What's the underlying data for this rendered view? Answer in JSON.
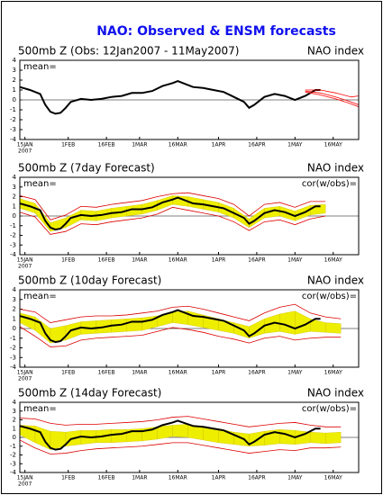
{
  "title": "NAO: Observed & ENSM forecasts",
  "chart_data": [
    {
      "type": "line",
      "title": "500mb Z (Obs: 12Jan2007 - 11May2007)",
      "index_label": "NAO index",
      "mean_label": "mean=",
      "xlim": [
        -2,
        131
      ],
      "ylim": [
        -4,
        4
      ],
      "yticks": [
        -4,
        -3,
        -2,
        -1,
        0,
        1,
        2,
        3,
        4
      ],
      "xticks": [
        {
          "value": 0,
          "label": "15JAN"
        },
        {
          "value": 17,
          "label": "1FEB"
        },
        {
          "value": 32,
          "label": "16FEB"
        },
        {
          "value": 45,
          "label": "1MAR"
        },
        {
          "value": 60,
          "label": "16MAR"
        },
        {
          "value": 76,
          "label": "1APR"
        },
        {
          "value": 91,
          "label": "16APR"
        },
        {
          "value": 106,
          "label": "1MAY"
        },
        {
          "value": 121,
          "label": "16MAY"
        }
      ],
      "year_label": "2007",
      "series": [
        {
          "kind": "line",
          "color": "#000000",
          "x": [
            -2,
            2,
            6,
            8,
            10,
            12,
            14,
            16,
            18,
            22,
            26,
            30,
            34,
            38,
            42,
            46,
            50,
            54,
            58,
            60,
            62,
            66,
            70,
            74,
            78,
            82,
            86,
            88,
            90,
            94,
            98,
            102,
            106,
            110,
            114,
            116
          ],
          "values": [
            1.3,
            1.0,
            0.6,
            -0.5,
            -1.2,
            -1.4,
            -1.3,
            -0.8,
            -0.2,
            0.1,
            0.0,
            0.1,
            0.3,
            0.4,
            0.7,
            0.7,
            0.9,
            1.4,
            1.7,
            1.9,
            1.7,
            1.3,
            1.2,
            1.0,
            0.8,
            0.3,
            -0.2,
            -0.8,
            -0.5,
            0.3,
            0.6,
            0.4,
            0.0,
            0.4,
            1.0,
            1.0
          ]
        },
        {
          "kind": "line",
          "color": "#ff0000",
          "x": [
            110,
            116,
            122,
            128,
            131
          ],
          "values": [
            0.9,
            0.7,
            0.3,
            -0.2,
            -0.5
          ]
        },
        {
          "kind": "line",
          "color": "#ff0000",
          "x": [
            110,
            116,
            122,
            128,
            131
          ],
          "values": [
            1.0,
            1.0,
            0.7,
            0.3,
            0.4
          ]
        },
        {
          "kind": "line",
          "color": "#ff0000",
          "x": [
            110,
            116,
            122,
            128,
            131
          ],
          "values": [
            0.8,
            0.5,
            0.1,
            -0.4,
            -0.7
          ]
        }
      ]
    },
    {
      "type": "line",
      "title": "500mb Z (7day Forecast)",
      "index_label": "NAO index",
      "mean_label": "mean=",
      "cor_label": "cor(w/obs)=",
      "xlim": [
        -2,
        131
      ],
      "ylim": [
        -4,
        4
      ],
      "yticks": [
        -4,
        -3,
        -2,
        -1,
        0,
        1,
        2,
        3,
        4
      ],
      "xticks": [
        {
          "value": 0,
          "label": "15JAN"
        },
        {
          "value": 17,
          "label": "1FEB"
        },
        {
          "value": 32,
          "label": "16FEB"
        },
        {
          "value": 45,
          "label": "1MAR"
        },
        {
          "value": 60,
          "label": "16MAR"
        },
        {
          "value": 76,
          "label": "1APR"
        },
        {
          "value": 91,
          "label": "16APR"
        },
        {
          "value": 106,
          "label": "1MAY"
        },
        {
          "value": 121,
          "label": "16MAY"
        }
      ],
      "year_label": "2007",
      "series": [
        {
          "kind": "band",
          "color": "#eeee00",
          "x": [
            -2,
            4,
            10,
            16,
            22,
            28,
            34,
            40,
            46,
            52,
            58,
            64,
            70,
            76,
            82,
            88,
            94,
            100,
            106,
            112,
            118
          ],
          "low": [
            0.8,
            0.3,
            -1.6,
            -1.2,
            -0.4,
            -0.5,
            -0.2,
            0.0,
            0.2,
            0.6,
            1.2,
            1.0,
            0.7,
            0.4,
            -0.2,
            -1.2,
            -0.2,
            0.0,
            -0.5,
            0.1,
            0.3
          ],
          "high": [
            1.8,
            1.3,
            -0.7,
            -0.2,
            0.6,
            0.5,
            0.8,
            1.0,
            1.2,
            1.6,
            2.1,
            2.0,
            1.7,
            1.4,
            0.8,
            -0.3,
            0.8,
            1.0,
            0.5,
            1.1,
            1.2
          ]
        },
        {
          "kind": "line",
          "color": "#dd0000",
          "x": [
            -2,
            4,
            10,
            16,
            22,
            28,
            34,
            40,
            46,
            52,
            58,
            64,
            70,
            76,
            82,
            88,
            94,
            100,
            106,
            112,
            118
          ],
          "values": [
            0.4,
            -0.1,
            -1.9,
            -1.6,
            -0.8,
            -0.9,
            -0.6,
            -0.4,
            -0.2,
            0.2,
            0.9,
            0.6,
            0.3,
            0.0,
            -0.6,
            -1.5,
            -0.6,
            -0.4,
            -0.9,
            -0.3,
            0.0
          ]
        },
        {
          "kind": "line",
          "color": "#dd0000",
          "x": [
            -2,
            4,
            10,
            16,
            22,
            28,
            34,
            40,
            46,
            52,
            58,
            64,
            70,
            76,
            82,
            88,
            94,
            100,
            106,
            112,
            118
          ],
          "values": [
            2.1,
            1.7,
            -0.4,
            0.1,
            1.0,
            0.9,
            1.2,
            1.4,
            1.6,
            2.0,
            2.3,
            2.4,
            2.1,
            1.8,
            1.2,
            0.0,
            1.2,
            1.4,
            0.9,
            1.5,
            1.5
          ]
        },
        {
          "kind": "line",
          "color": "#000000",
          "x": [
            -2,
            2,
            6,
            8,
            10,
            12,
            14,
            16,
            18,
            22,
            26,
            30,
            34,
            38,
            42,
            46,
            50,
            54,
            58,
            60,
            62,
            66,
            70,
            74,
            78,
            82,
            86,
            88,
            90,
            94,
            98,
            102,
            106,
            110,
            114,
            116
          ],
          "values": [
            1.3,
            1.0,
            0.6,
            -0.5,
            -1.2,
            -1.4,
            -1.3,
            -0.8,
            -0.2,
            0.1,
            0.0,
            0.1,
            0.3,
            0.4,
            0.7,
            0.7,
            0.9,
            1.4,
            1.7,
            1.9,
            1.7,
            1.3,
            1.2,
            1.0,
            0.8,
            0.3,
            -0.2,
            -0.8,
            -0.5,
            0.3,
            0.6,
            0.4,
            0.0,
            0.4,
            1.0,
            1.0
          ]
        }
      ]
    },
    {
      "type": "line",
      "title": "500mb Z (10day Forecast)",
      "index_label": "NAO index",
      "mean_label": "mean=",
      "cor_label": "cor(w/obs)=",
      "xlim": [
        -2,
        131
      ],
      "ylim": [
        -4,
        4
      ],
      "yticks": [
        -4,
        -3,
        -2,
        -1,
        0,
        1,
        2,
        3,
        4
      ],
      "xticks": [
        {
          "value": 0,
          "label": "15JAN"
        },
        {
          "value": 17,
          "label": "1FEB"
        },
        {
          "value": 32,
          "label": "16FEB"
        },
        {
          "value": 45,
          "label": "1MAR"
        },
        {
          "value": 60,
          "label": "16MAR"
        },
        {
          "value": 76,
          "label": "1APR"
        },
        {
          "value": 91,
          "label": "16APR"
        },
        {
          "value": 106,
          "label": "1MAY"
        },
        {
          "value": 121,
          "label": "16MAY"
        }
      ],
      "year_label": "2007",
      "series": [
        {
          "kind": "band",
          "color": "#eeee00",
          "x": [
            -2,
            4,
            10,
            16,
            22,
            28,
            34,
            40,
            46,
            52,
            58,
            64,
            70,
            76,
            82,
            88,
            94,
            100,
            106,
            112,
            118,
            124
          ],
          "low": [
            0.6,
            -0.2,
            -1.5,
            -1.2,
            -0.6,
            -0.5,
            -0.4,
            -0.3,
            -0.2,
            0.2,
            0.6,
            0.4,
            0.1,
            -0.2,
            -0.5,
            -1.0,
            -0.5,
            -0.3,
            -0.6,
            -0.3,
            -0.4,
            -0.5
          ],
          "high": [
            1.6,
            1.2,
            0.0,
            0.3,
            0.7,
            0.8,
            0.9,
            1.0,
            1.1,
            1.3,
            1.7,
            1.8,
            1.4,
            1.0,
            0.6,
            0.2,
            1.0,
            1.5,
            1.8,
            1.0,
            0.6,
            0.5
          ]
        },
        {
          "kind": "line",
          "color": "#dd0000",
          "x": [
            -2,
            4,
            10,
            16,
            22,
            28,
            34,
            40,
            46,
            52,
            58,
            64,
            70,
            76,
            82,
            88,
            94,
            100,
            106,
            112,
            118,
            124
          ],
          "values": [
            0.2,
            -0.8,
            -1.9,
            -1.8,
            -1.2,
            -1.0,
            -0.9,
            -0.8,
            -0.7,
            -0.3,
            0.1,
            -0.1,
            -0.4,
            -0.8,
            -1.1,
            -1.5,
            -1.0,
            -0.8,
            -1.2,
            -1.0,
            -0.9,
            -0.9
          ]
        },
        {
          "kind": "line",
          "color": "#dd0000",
          "x": [
            -2,
            4,
            10,
            16,
            22,
            28,
            34,
            40,
            46,
            52,
            58,
            64,
            70,
            76,
            82,
            88,
            94,
            100,
            106,
            112,
            118,
            124
          ],
          "values": [
            2.0,
            1.7,
            0.6,
            0.9,
            1.2,
            1.3,
            1.3,
            1.4,
            1.6,
            1.8,
            2.2,
            2.3,
            2.0,
            1.6,
            1.2,
            0.8,
            1.6,
            2.2,
            2.5,
            1.6,
            1.2,
            1.0
          ]
        },
        {
          "kind": "line",
          "color": "#000000",
          "x": [
            -2,
            2,
            6,
            8,
            10,
            12,
            14,
            16,
            18,
            22,
            26,
            30,
            34,
            38,
            42,
            46,
            50,
            54,
            58,
            60,
            62,
            66,
            70,
            74,
            78,
            82,
            86,
            88,
            90,
            94,
            98,
            102,
            106,
            110,
            114,
            116
          ],
          "values": [
            1.3,
            1.0,
            0.6,
            -0.5,
            -1.2,
            -1.4,
            -1.3,
            -0.8,
            -0.2,
            0.1,
            0.0,
            0.1,
            0.3,
            0.4,
            0.7,
            0.7,
            0.9,
            1.4,
            1.7,
            1.9,
            1.7,
            1.3,
            1.2,
            1.0,
            0.8,
            0.3,
            -0.2,
            -0.8,
            -0.5,
            0.3,
            0.6,
            0.4,
            0.0,
            0.4,
            1.0,
            1.0
          ]
        }
      ]
    },
    {
      "type": "line",
      "title": "500mb Z (14day Forecast)",
      "index_label": "NAO index",
      "mean_label": "mean=",
      "cor_label": "cor(w/obs)=",
      "xlim": [
        -2,
        131
      ],
      "ylim": [
        -4,
        4
      ],
      "yticks": [
        -4,
        -3,
        -2,
        -1,
        0,
        1,
        2,
        3,
        4
      ],
      "xticks": [
        {
          "value": 0,
          "label": "15JAN"
        },
        {
          "value": 17,
          "label": "1FEB"
        },
        {
          "value": 32,
          "label": "16FEB"
        },
        {
          "value": 45,
          "label": "1MAR"
        },
        {
          "value": 60,
          "label": "16MAR"
        },
        {
          "value": 76,
          "label": "1APR"
        },
        {
          "value": 91,
          "label": "16APR"
        },
        {
          "value": 106,
          "label": "1MAY"
        },
        {
          "value": 121,
          "label": "16MAY"
        }
      ],
      "year_label": "2007",
      "series": [
        {
          "kind": "band",
          "color": "#eeee00",
          "x": [
            -2,
            4,
            10,
            16,
            22,
            28,
            34,
            40,
            46,
            52,
            58,
            64,
            70,
            76,
            82,
            88,
            94,
            100,
            106,
            112,
            118,
            124
          ],
          "low": [
            0.3,
            -0.6,
            -1.4,
            -1.0,
            -0.8,
            -0.6,
            -0.6,
            -0.5,
            -0.4,
            -0.2,
            0.1,
            0.0,
            -0.3,
            -0.6,
            -0.8,
            -1.0,
            -0.9,
            -0.7,
            -0.8,
            -0.6,
            -0.7,
            -0.6
          ],
          "high": [
            1.4,
            1.3,
            0.7,
            0.6,
            0.8,
            0.8,
            0.9,
            0.9,
            1.0,
            1.2,
            1.4,
            1.5,
            1.2,
            1.0,
            0.6,
            0.4,
            0.7,
            0.9,
            0.8,
            0.6,
            0.5,
            0.6
          ]
        },
        {
          "kind": "line",
          "color": "#dd0000",
          "x": [
            -2,
            4,
            10,
            16,
            22,
            28,
            34,
            40,
            46,
            52,
            58,
            64,
            70,
            76,
            82,
            88,
            94,
            100,
            106,
            112,
            118,
            124
          ],
          "values": [
            -0.3,
            -1.2,
            -1.9,
            -1.8,
            -1.5,
            -1.3,
            -1.2,
            -1.1,
            -1.0,
            -0.8,
            -0.6,
            -0.6,
            -0.9,
            -1.2,
            -1.5,
            -1.8,
            -1.6,
            -1.4,
            -1.5,
            -1.2,
            -1.2,
            -1.1
          ]
        },
        {
          "kind": "line",
          "color": "#dd0000",
          "x": [
            -2,
            4,
            10,
            16,
            22,
            28,
            34,
            40,
            46,
            52,
            58,
            64,
            70,
            76,
            82,
            88,
            94,
            100,
            106,
            112,
            118,
            124
          ],
          "values": [
            2.2,
            2.1,
            1.6,
            1.4,
            1.5,
            1.5,
            1.6,
            1.7,
            1.8,
            2.0,
            2.3,
            2.4,
            2.1,
            1.8,
            1.5,
            1.2,
            1.4,
            1.6,
            1.7,
            1.4,
            1.2,
            1.2
          ]
        },
        {
          "kind": "line",
          "color": "#000000",
          "x": [
            -2,
            2,
            6,
            8,
            10,
            12,
            14,
            16,
            18,
            22,
            26,
            30,
            34,
            38,
            42,
            46,
            50,
            54,
            58,
            60,
            62,
            66,
            70,
            74,
            78,
            82,
            86,
            88,
            90,
            94,
            98,
            102,
            106,
            110,
            114,
            116
          ],
          "values": [
            1.3,
            1.0,
            0.6,
            -0.5,
            -1.2,
            -1.4,
            -1.3,
            -0.8,
            -0.2,
            0.1,
            0.0,
            0.1,
            0.3,
            0.4,
            0.7,
            0.7,
            0.9,
            1.4,
            1.7,
            1.9,
            1.7,
            1.3,
            1.2,
            1.0,
            0.8,
            0.3,
            -0.2,
            -0.8,
            -0.5,
            0.3,
            0.6,
            0.4,
            0.0,
            0.4,
            1.0,
            1.0
          ]
        }
      ]
    }
  ]
}
